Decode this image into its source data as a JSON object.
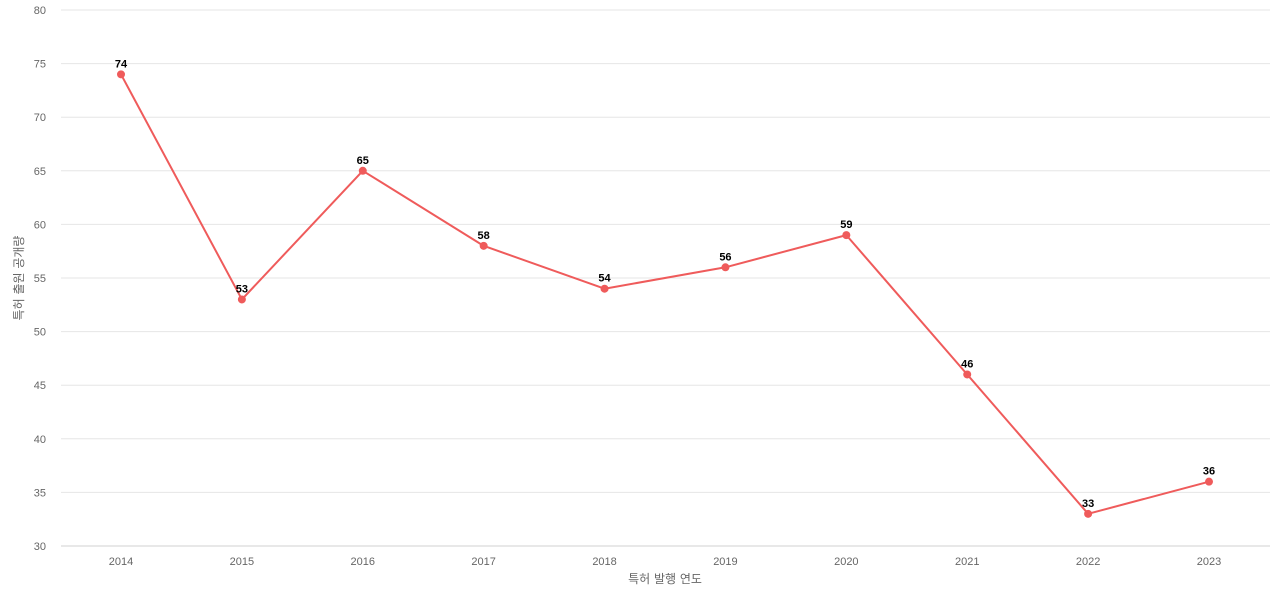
{
  "chart_data": {
    "type": "line",
    "title": "",
    "xlabel": "특허 발행 연도",
    "ylabel": "특허 출원 공개량",
    "categories": [
      "2014",
      "2015",
      "2016",
      "2017",
      "2018",
      "2019",
      "2020",
      "2021",
      "2022",
      "2023"
    ],
    "series": [
      {
        "values": [
          74,
          53,
          65,
          58,
          54,
          56,
          59,
          46,
          33,
          36
        ],
        "color": "#ef5b5b"
      }
    ],
    "ylim": [
      30,
      80
    ],
    "yticks": [
      30,
      35,
      40,
      45,
      50,
      55,
      60,
      65,
      70,
      75,
      80
    ],
    "grid": true,
    "legend": "none",
    "data_labels": true
  }
}
